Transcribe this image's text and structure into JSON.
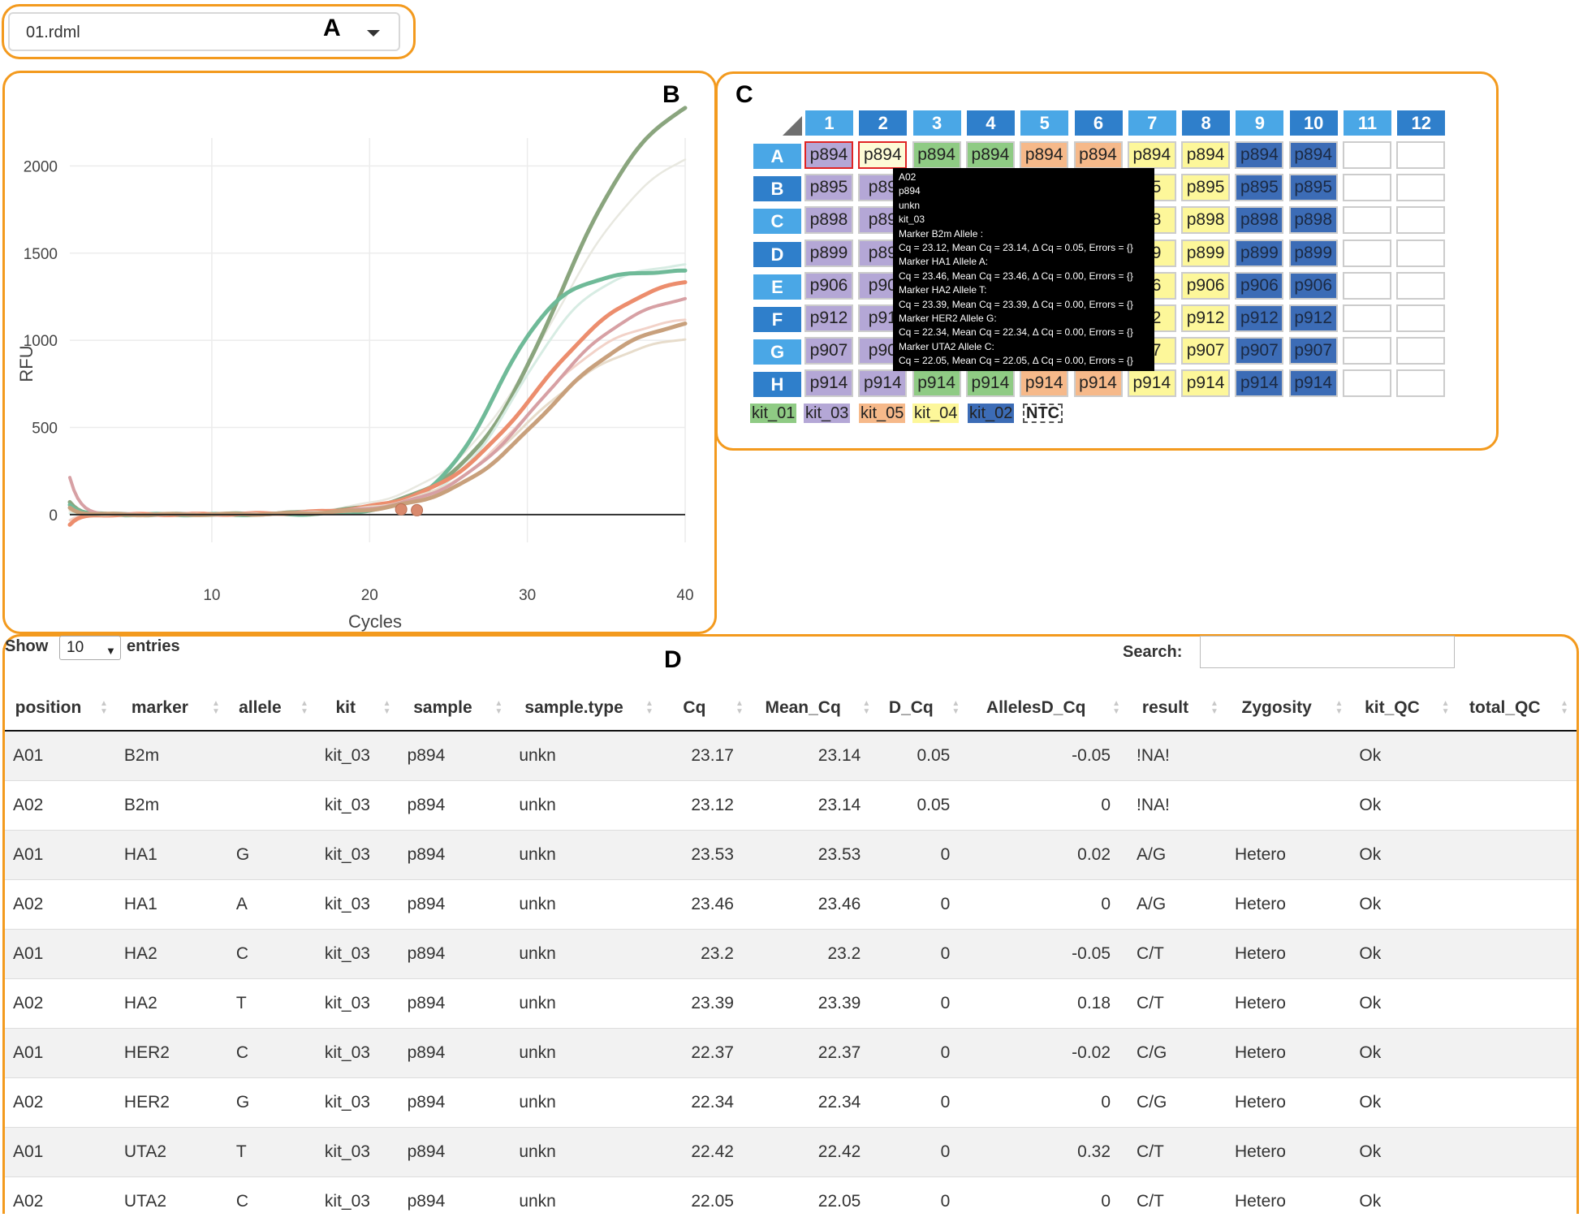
{
  "panel_labels": {
    "a": "A",
    "b": "B",
    "c": "C",
    "d": "D"
  },
  "file_select": {
    "value": "01.rdml"
  },
  "chart_data": {
    "type": "line",
    "xlabel": "Cycles",
    "ylabel": "RFU",
    "xlim": [
      1,
      40
    ],
    "ylim": [
      -150,
      2300
    ],
    "x_ticks": [
      10,
      20,
      30,
      40
    ],
    "y_ticks": [
      0,
      500,
      1000,
      1500,
      2000
    ],
    "grid": true,
    "series": [
      {
        "color": "#e8e8e0",
        "plateau": 2200,
        "mid": 31.5,
        "slope": 0.3,
        "start": 30,
        "width": 2.5
      },
      {
        "color": "#8aa57e",
        "plateau": 2500,
        "mid": 32.0,
        "slope": 0.33,
        "start": 70,
        "width": 5
      },
      {
        "color": "#d7ece3",
        "plateau": 1450,
        "mid": 29.5,
        "slope": 0.42,
        "start": 10,
        "width": 3
      },
      {
        "color": "#6fba98",
        "plateau": 1400,
        "mid": 28.0,
        "slope": 0.5,
        "start": 60,
        "width": 5
      },
      {
        "color": "#f2d2c8",
        "plateau": 1150,
        "mid": 30.0,
        "slope": 0.35,
        "start": -30,
        "width": 3
      },
      {
        "color": "#ec8d6d",
        "plateau": 1400,
        "mid": 30.5,
        "slope": 0.32,
        "start": -60,
        "width": 5
      },
      {
        "color": "#e7dccb",
        "plateau": 1050,
        "mid": 30.0,
        "slope": 0.32,
        "start": 20,
        "width": 3
      },
      {
        "color": "#d7a0a4",
        "plateau": 1300,
        "mid": 30.8,
        "slope": 0.33,
        "start": 210,
        "width": 4
      },
      {
        "color": "#c8a07c",
        "plateau": 1150,
        "mid": 31.0,
        "slope": 0.33,
        "start": 40,
        "width": 5
      }
    ],
    "markers": [
      {
        "x": 22,
        "y": 30
      },
      {
        "x": 23,
        "y": 25
      }
    ]
  },
  "plate": {
    "columns": [
      "1",
      "2",
      "3",
      "4",
      "5",
      "6",
      "7",
      "8",
      "9",
      "10",
      "11",
      "12"
    ],
    "rows": [
      "A",
      "B",
      "C",
      "D",
      "E",
      "F",
      "G",
      "H"
    ],
    "row_samples": [
      "p894",
      "p895",
      "p898",
      "p899",
      "p906",
      "p912",
      "p907",
      "p914"
    ],
    "visible_cells": {
      "A": [
        "p894",
        "p894",
        "p894",
        "p894",
        "p894",
        "p894",
        "p894",
        "p894",
        "p894",
        "p894",
        "",
        ""
      ],
      "B": [
        "p895",
        "p89",
        "",
        "",
        "",
        "",
        "95",
        "p895",
        "p895",
        "p895",
        "",
        ""
      ],
      "C": [
        "p898",
        "p89",
        "",
        "",
        "",
        "",
        "98",
        "p898",
        "p898",
        "p898",
        "",
        ""
      ],
      "D": [
        "p899",
        "p89",
        "",
        "",
        "",
        "",
        "99",
        "p899",
        "p899",
        "p899",
        "",
        ""
      ],
      "E": [
        "p906",
        "p90",
        "",
        "",
        "",
        "",
        "06",
        "p906",
        "p906",
        "p906",
        "",
        ""
      ],
      "F": [
        "p912",
        "p91",
        "",
        "",
        "",
        "",
        "12",
        "p912",
        "p912",
        "p912",
        "",
        ""
      ],
      "G": [
        "p907",
        "p90",
        "",
        "",
        "",
        "",
        "07",
        "p907",
        "p907",
        "p907",
        "",
        ""
      ],
      "H": [
        "p914",
        "p914",
        "p914",
        "p914",
        "p914",
        "p914",
        "p914",
        "p914",
        "p914",
        "p914",
        "",
        ""
      ]
    },
    "column_kits": [
      "kit_03",
      "kit_03",
      "kit_01",
      "kit_01",
      "kit_05",
      "kit_05",
      "kit_04",
      "kit_04",
      "kit_02",
      "kit_02",
      "",
      ""
    ],
    "kit_colors": {
      "kit_01": "#8fcb84",
      "kit_03": "#b4a7d6",
      "kit_05": "#f6b98a",
      "kit_04": "#fdf79a",
      "kit_02": "#3c6cb6",
      "NTC": "#ffffff"
    },
    "header_colors": [
      "#4aa7e6",
      "#2f7fcb"
    ],
    "legend": [
      "kit_01",
      "kit_03",
      "kit_05",
      "kit_04",
      "kit_02",
      "NTC"
    ],
    "tooltip": [
      "A02",
      "p894",
      "unkn",
      "kit_03",
      "Marker B2m Allele :",
      "Cq = 23.12, Mean Cq = 23.14, Δ Cq = 0.05, Errors = {}",
      "Marker HA1 Allele A:",
      "Cq = 23.46, Mean Cq = 23.46, Δ Cq = 0.00, Errors = {}",
      "Marker HA2 Allele T:",
      "Cq = 23.39, Mean Cq = 23.39, Δ Cq = 0.00, Errors = {}",
      "Marker HER2 Allele G:",
      "Cq = 22.34, Mean Cq = 22.34, Δ Cq = 0.00, Errors = {}",
      "Marker UTA2 Allele C:",
      "Cq = 22.05, Mean Cq = 22.05, Δ Cq = 0.00, Errors = {}"
    ]
  },
  "table": {
    "show_label": "Show",
    "length_value": "10",
    "entries_label": "entries",
    "search_label": "Search:",
    "columns": [
      "position",
      "marker",
      "allele",
      "kit",
      "sample",
      "sample.type",
      "Cq",
      "Mean_Cq",
      "D_Cq",
      "AllelesD_Cq",
      "result",
      "Zygosity",
      "kit_QC",
      "total_QC"
    ],
    "rows": [
      [
        "A01",
        "B2m",
        "",
        "kit_03",
        "p894",
        "unkn",
        "23.17",
        "23.14",
        "0.05",
        "-0.05",
        "!NA!",
        "",
        "Ok",
        ""
      ],
      [
        "A02",
        "B2m",
        "",
        "kit_03",
        "p894",
        "unkn",
        "23.12",
        "23.14",
        "0.05",
        "0",
        "!NA!",
        "",
        "Ok",
        ""
      ],
      [
        "A01",
        "HA1",
        "G",
        "kit_03",
        "p894",
        "unkn",
        "23.53",
        "23.53",
        "0",
        "0.02",
        "A/G",
        "Hetero",
        "Ok",
        ""
      ],
      [
        "A02",
        "HA1",
        "A",
        "kit_03",
        "p894",
        "unkn",
        "23.46",
        "23.46",
        "0",
        "0",
        "A/G",
        "Hetero",
        "Ok",
        ""
      ],
      [
        "A01",
        "HA2",
        "C",
        "kit_03",
        "p894",
        "unkn",
        "23.2",
        "23.2",
        "0",
        "-0.05",
        "C/T",
        "Hetero",
        "Ok",
        ""
      ],
      [
        "A02",
        "HA2",
        "T",
        "kit_03",
        "p894",
        "unkn",
        "23.39",
        "23.39",
        "0",
        "0.18",
        "C/T",
        "Hetero",
        "Ok",
        ""
      ],
      [
        "A01",
        "HER2",
        "C",
        "kit_03",
        "p894",
        "unkn",
        "22.37",
        "22.37",
        "0",
        "-0.02",
        "C/G",
        "Hetero",
        "Ok",
        ""
      ],
      [
        "A02",
        "HER2",
        "G",
        "kit_03",
        "p894",
        "unkn",
        "22.34",
        "22.34",
        "0",
        "0",
        "C/G",
        "Hetero",
        "Ok",
        ""
      ],
      [
        "A01",
        "UTA2",
        "T",
        "kit_03",
        "p894",
        "unkn",
        "22.42",
        "22.42",
        "0",
        "0.32",
        "C/T",
        "Hetero",
        "Ok",
        ""
      ],
      [
        "A02",
        "UTA2",
        "C",
        "kit_03",
        "p894",
        "unkn",
        "22.05",
        "22.05",
        "0",
        "0",
        "C/T",
        "Hetero",
        "Ok",
        ""
      ]
    ]
  }
}
